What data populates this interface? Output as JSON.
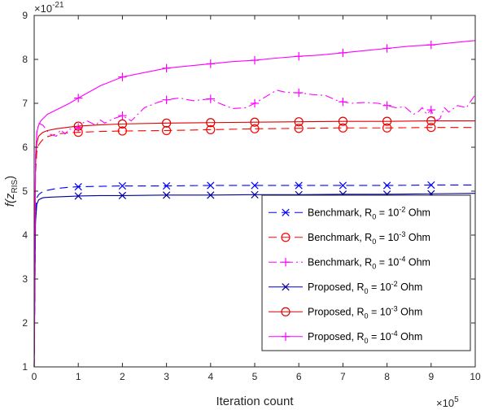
{
  "chart_data": {
    "type": "line",
    "xlabel": "Iteration count",
    "ylabel_main": "f(z",
    "ylabel_sub": "RIS",
    "ylabel_close": ")",
    "x_exponent": {
      "base": "×10",
      "power": "5"
    },
    "y_exponent": {
      "base": "×10",
      "power": "-21"
    },
    "xlim": [
      0,
      10
    ],
    "ylim": [
      1,
      9
    ],
    "xticks": [
      0,
      1,
      2,
      3,
      4,
      5,
      6,
      7,
      8,
      9,
      10
    ],
    "yticks": [
      1,
      2,
      3,
      4,
      5,
      6,
      7,
      8,
      9
    ],
    "grid": false,
    "legend_position": "bottom-right",
    "series": [
      {
        "name": "Benchmark, R",
        "sub": "0",
        "mid": " = 10",
        "pow": "-2",
        "unit": " Ohm",
        "color": "#0000ff",
        "dash": "dashed",
        "marker": "x",
        "x": [
          0,
          0.03,
          0.06,
          0.1,
          0.15,
          0.2,
          0.3,
          0.5,
          0.8,
          1,
          1.5,
          2,
          3,
          4,
          5,
          6,
          7,
          8,
          9,
          10
        ],
        "y": [
          1.0,
          4.4,
          4.85,
          4.92,
          4.96,
          4.99,
          5.02,
          5.06,
          5.09,
          5.1,
          5.11,
          5.12,
          5.12,
          5.13,
          5.13,
          5.13,
          5.13,
          5.13,
          5.14,
          5.14
        ],
        "marker_x": [
          1,
          2,
          3,
          4,
          5,
          6,
          7,
          8,
          9
        ]
      },
      {
        "name": "Benchmark, R",
        "sub": "0",
        "mid": " = 10",
        "pow": "-3",
        "unit": " Ohm",
        "color": "#ff0000",
        "dash": "dashed",
        "marker": "o",
        "x": [
          0,
          0.03,
          0.06,
          0.1,
          0.15,
          0.2,
          0.3,
          0.5,
          0.8,
          1,
          1.5,
          2,
          3,
          4,
          5,
          6,
          7,
          8,
          9,
          10
        ],
        "y": [
          1.0,
          5.4,
          5.9,
          6.05,
          6.12,
          6.18,
          6.24,
          6.3,
          6.33,
          6.34,
          6.36,
          6.37,
          6.38,
          6.4,
          6.42,
          6.43,
          6.44,
          6.44,
          6.45,
          6.45
        ],
        "marker_x": [
          1,
          2,
          3,
          4,
          5,
          6,
          7,
          8,
          9
        ]
      },
      {
        "name": "Benchmark, R",
        "sub": "0",
        "mid": " = 10",
        "pow": "-4",
        "unit": " Ohm",
        "color": "#ff00ff",
        "dash": "dashdot",
        "marker": "+",
        "x": [
          0,
          0.03,
          0.06,
          0.1,
          0.2,
          0.35,
          0.5,
          0.6,
          0.7,
          0.8,
          0.9,
          1.0,
          1.1,
          1.2,
          1.4,
          1.5,
          1.6,
          1.8,
          2.0,
          2.2,
          2.5,
          2.8,
          3.0,
          3.3,
          3.6,
          4.0,
          4.2,
          4.5,
          4.8,
          5.0,
          5.2,
          5.5,
          5.7,
          6.0,
          6.3,
          6.6,
          6.9,
          7.2,
          7.5,
          7.8,
          8.0,
          8.2,
          8.4,
          8.6,
          8.7,
          8.8,
          8.9,
          9.0,
          9.1,
          9.2,
          9.3,
          9.4,
          9.6,
          9.8,
          10
        ],
        "y": [
          1.0,
          5.6,
          6.3,
          6.55,
          6.5,
          6.3,
          6.25,
          6.4,
          6.3,
          6.42,
          6.38,
          6.45,
          6.55,
          6.6,
          6.5,
          6.62,
          6.55,
          6.65,
          6.72,
          6.6,
          6.9,
          7.02,
          7.08,
          7.12,
          7.06,
          7.1,
          7.0,
          6.88,
          6.9,
          7.0,
          7.12,
          7.3,
          7.25,
          7.24,
          7.2,
          7.18,
          7.05,
          7.0,
          7.02,
          7.0,
          6.95,
          6.9,
          6.92,
          6.75,
          6.8,
          6.9,
          6.75,
          6.85,
          6.6,
          6.65,
          6.9,
          6.8,
          6.95,
          6.9,
          7.2
        ],
        "marker_x": [
          1,
          2,
          3,
          4,
          5,
          6,
          7,
          8,
          9
        ]
      },
      {
        "name": "Proposed, R",
        "sub": "0",
        "mid": " = 10",
        "pow": "-2",
        "unit": " Ohm",
        "color": "#0000a0",
        "dash": "solid",
        "marker": "x",
        "x": [
          0,
          0.03,
          0.06,
          0.1,
          0.15,
          0.2,
          0.3,
          0.5,
          0.8,
          1,
          1.5,
          2,
          3,
          4,
          5,
          6,
          7,
          8,
          9,
          10
        ],
        "y": [
          1.0,
          4.3,
          4.7,
          4.8,
          4.83,
          4.85,
          4.86,
          4.87,
          4.88,
          4.89,
          4.9,
          4.9,
          4.91,
          4.91,
          4.92,
          4.92,
          4.93,
          4.93,
          4.94,
          4.95
        ],
        "marker_x": [
          1,
          2,
          3,
          4,
          5,
          6,
          7,
          8,
          9
        ]
      },
      {
        "name": "Proposed, R",
        "sub": "0",
        "mid": " = 10",
        "pow": "-3",
        "unit": " Ohm",
        "color": "#e00000",
        "dash": "solid",
        "marker": "o",
        "x": [
          0,
          0.03,
          0.06,
          0.1,
          0.15,
          0.2,
          0.3,
          0.5,
          0.8,
          1,
          1.5,
          2,
          3,
          4,
          5,
          6,
          7,
          8,
          9,
          10
        ],
        "y": [
          1.0,
          5.6,
          6.1,
          6.25,
          6.3,
          6.34,
          6.38,
          6.42,
          6.46,
          6.48,
          6.51,
          6.53,
          6.55,
          6.56,
          6.57,
          6.58,
          6.59,
          6.59,
          6.6,
          6.6
        ],
        "marker_x": [
          1,
          2,
          3,
          4,
          5,
          6,
          7,
          8,
          9
        ]
      },
      {
        "name": "Proposed, R",
        "sub": "0",
        "mid": " = 10",
        "pow": "-4",
        "unit": " Ohm",
        "color": "#ff00ff",
        "dash": "solid",
        "marker": "+",
        "x": [
          0,
          0.03,
          0.06,
          0.1,
          0.15,
          0.2,
          0.3,
          0.5,
          0.8,
          1,
          1.5,
          2,
          2.5,
          3,
          3.5,
          4,
          4.5,
          5,
          5.5,
          6,
          6.5,
          7,
          7.5,
          8,
          8.5,
          9,
          9.5,
          10
        ],
        "y": [
          1.0,
          5.8,
          6.35,
          6.5,
          6.6,
          6.65,
          6.75,
          6.85,
          7.0,
          7.12,
          7.4,
          7.6,
          7.7,
          7.8,
          7.85,
          7.9,
          7.95,
          7.98,
          8.03,
          8.07,
          8.1,
          8.15,
          8.2,
          8.25,
          8.3,
          8.33,
          8.38,
          8.43
        ],
        "marker_x": [
          1,
          2,
          3,
          4,
          5,
          6,
          7,
          8,
          9
        ]
      }
    ]
  }
}
